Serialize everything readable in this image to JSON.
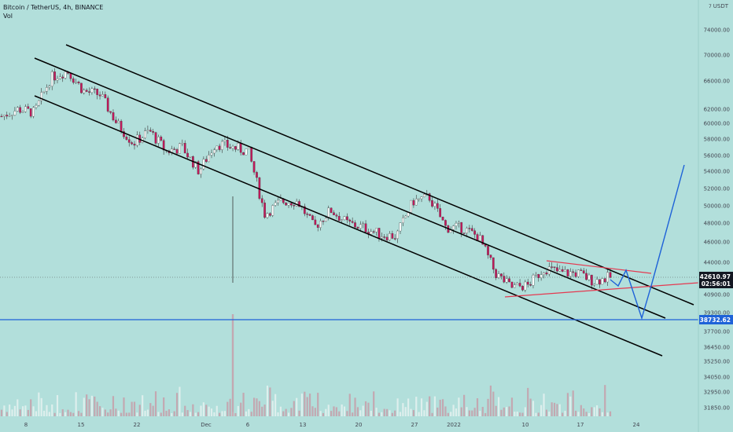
{
  "header": {
    "symbol_line": "Bitcoin / TetherUS, 4h, BINANCE",
    "volume_label": "Vol",
    "unit": "USDT"
  },
  "colors": {
    "background": "#b2dfdb",
    "channel_lines": "#000000",
    "triangle": "#e53950",
    "projection": "#1e62d8",
    "support_line": "#1e62d8",
    "up_candle": "#ffffff",
    "down_candle": "#c2185b",
    "price_tag": "#131722",
    "support_tag": "#1e62d8"
  },
  "chart_data": {
    "type": "candlestick",
    "title": "Bitcoin / TetherUS, 4h, BINANCE",
    "price_axis": {
      "ticks": [
        74000,
        70000,
        66000,
        62000,
        60000,
        58000,
        56000,
        54000,
        52000,
        50000,
        48000,
        46000,
        44000,
        40900,
        39300,
        37700,
        36450,
        35250,
        34050,
        32950,
        31850
      ],
      "tick_labels": [
        "74000.00",
        "70000.00",
        "66000.00",
        "62000.00",
        "60000.00",
        "58000.00",
        "56000.00",
        "54000.00",
        "52000.00",
        "50000.00",
        "48000.00",
        "46000.00",
        "44000.00",
        "40900.00",
        "39300.00",
        "37700.00",
        "36450.00",
        "35250.00",
        "34050.00",
        "32950.00",
        "31850.00"
      ],
      "scale": "log"
    },
    "time_axis": {
      "ticks": [
        "8",
        "15",
        "22",
        "Dec",
        "6",
        "13",
        "20",
        "27",
        "2022",
        "10",
        "17",
        "24"
      ]
    },
    "current_price": {
      "value": 42610.97,
      "label": "42610.97",
      "countdown": "02:56:01"
    },
    "support_level": {
      "value": 38732.62,
      "label": "38732.62"
    },
    "series_close": [
      {
        "date": "Nov 1",
        "close": 61000
      },
      {
        "date": "Nov 3",
        "close": 62000
      },
      {
        "date": "Nov 6",
        "close": 61500
      },
      {
        "date": "Nov 8",
        "close": 66500
      },
      {
        "date": "Nov 10",
        "close": 67500
      },
      {
        "date": "Nov 12",
        "close": 64500
      },
      {
        "date": "Nov 14",
        "close": 64000
      },
      {
        "date": "Nov 16",
        "close": 60000
      },
      {
        "date": "Nov 18",
        "close": 57500
      },
      {
        "date": "Nov 20",
        "close": 59000
      },
      {
        "date": "Nov 22",
        "close": 56500
      },
      {
        "date": "Nov 24",
        "close": 57000
      },
      {
        "date": "Nov 26",
        "close": 54000
      },
      {
        "date": "Nov 28",
        "close": 57500
      },
      {
        "date": "Nov 30",
        "close": 57000
      },
      {
        "date": "Dec 2",
        "close": 56500
      },
      {
        "date": "Dec 4",
        "close": 49000
      },
      {
        "date": "Dec 6",
        "close": 50500
      },
      {
        "date": "Dec 8",
        "close": 50500
      },
      {
        "date": "Dec 10",
        "close": 47500
      },
      {
        "date": "Dec 12",
        "close": 49500
      },
      {
        "date": "Dec 14",
        "close": 48000
      },
      {
        "date": "Dec 16",
        "close": 47500
      },
      {
        "date": "Dec 18",
        "close": 46800
      },
      {
        "date": "Dec 20",
        "close": 46600
      },
      {
        "date": "Dec 23",
        "close": 50500
      },
      {
        "date": "Dec 27",
        "close": 51000
      },
      {
        "date": "Dec 29",
        "close": 47500
      },
      {
        "date": "Jan 1",
        "close": 47500
      },
      {
        "date": "Jan 4",
        "close": 46500
      },
      {
        "date": "Jan 6",
        "close": 43000
      },
      {
        "date": "Jan 8",
        "close": 41600
      },
      {
        "date": "Jan 10",
        "close": 41800
      },
      {
        "date": "Jan 12",
        "close": 43500
      },
      {
        "date": "Jan 14",
        "close": 43000
      },
      {
        "date": "Jan 16",
        "close": 43000
      },
      {
        "date": "Jan 18",
        "close": 42200
      },
      {
        "date": "Jan 20",
        "close": 42610.97
      }
    ]
  }
}
